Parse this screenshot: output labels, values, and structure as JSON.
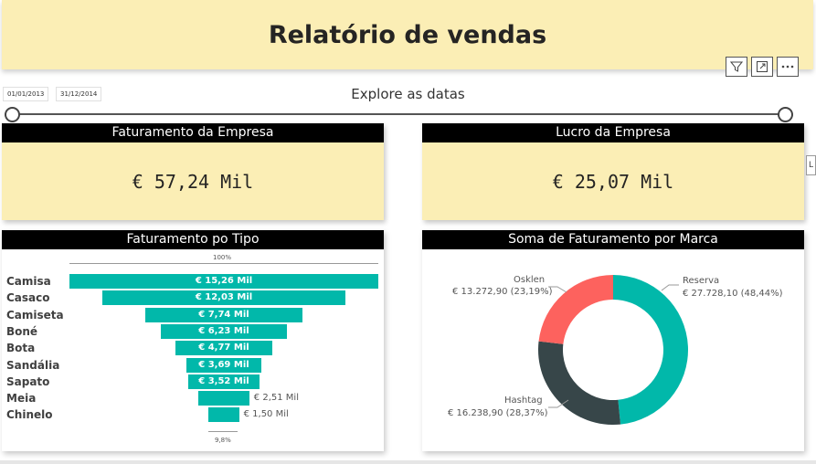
{
  "title": "Relatório de vendas",
  "visual_header": {
    "filter_icon": "funnel-filter-icon",
    "focus_icon": "focus-mode-icon",
    "more_icon": "more-options-icon"
  },
  "slicer": {
    "title": "Explore as datas",
    "start_date": "01/01/2013",
    "end_date": "31/12/2014"
  },
  "cards": {
    "faturamento": {
      "title": "Faturamento da Empresa",
      "value": "€ 57,24 Mil"
    },
    "lucro": {
      "title": "Lucro da Empresa",
      "value": "€ 25,07 Mil"
    }
  },
  "edge_tab_text": "L",
  "funnel": {
    "title": "Faturamento po Tipo",
    "top_pct": "100%",
    "bottom_pct": "9,8%",
    "bar_color": "#01b8aa"
  },
  "donut": {
    "title": "Soma de Faturamento por Marca",
    "labels": {
      "reserva": {
        "name": "Reserva",
        "value": "€ 27.728,10 (48,44%)"
      },
      "osklen": {
        "name": "Osklen",
        "value": "€ 13.272,90 (23,19%)"
      },
      "hashtag": {
        "name": "Hashtag",
        "value": "€ 16.238,90 (28,37%)"
      }
    }
  },
  "chart_data": [
    {
      "type": "bar",
      "title": "Faturamento po Tipo",
      "categories": [
        "Camisa",
        "Casaco",
        "Camiseta",
        "Boné",
        "Bota",
        "Sandália",
        "Sapato",
        "Meia",
        "Chinelo"
      ],
      "values": [
        15.26,
        12.03,
        7.74,
        6.23,
        4.77,
        3.69,
        3.52,
        2.51,
        1.5
      ],
      "value_labels": [
        "€ 15,26 Mil",
        "€ 12,03 Mil",
        "€ 7,74 Mil",
        "€ 6,23 Mil",
        "€ 4,77 Mil",
        "€ 3,69 Mil",
        "€ 3,52 Mil",
        "€ 2,51 Mil",
        "€ 1,50 Mil"
      ],
      "unit": "Mil €",
      "orientation": "funnel",
      "colors": [
        "#01b8aa"
      ]
    },
    {
      "type": "pie",
      "title": "Soma de Faturamento por Marca",
      "donut": true,
      "labels": [
        "Reserva",
        "Hashtag",
        "Osklen"
      ],
      "values": [
        27728.1,
        16238.9,
        13272.9
      ],
      "percentages": [
        48.44,
        28.37,
        23.19
      ],
      "colors": [
        "#01b8aa",
        "#374649",
        "#fd625e"
      ]
    }
  ]
}
